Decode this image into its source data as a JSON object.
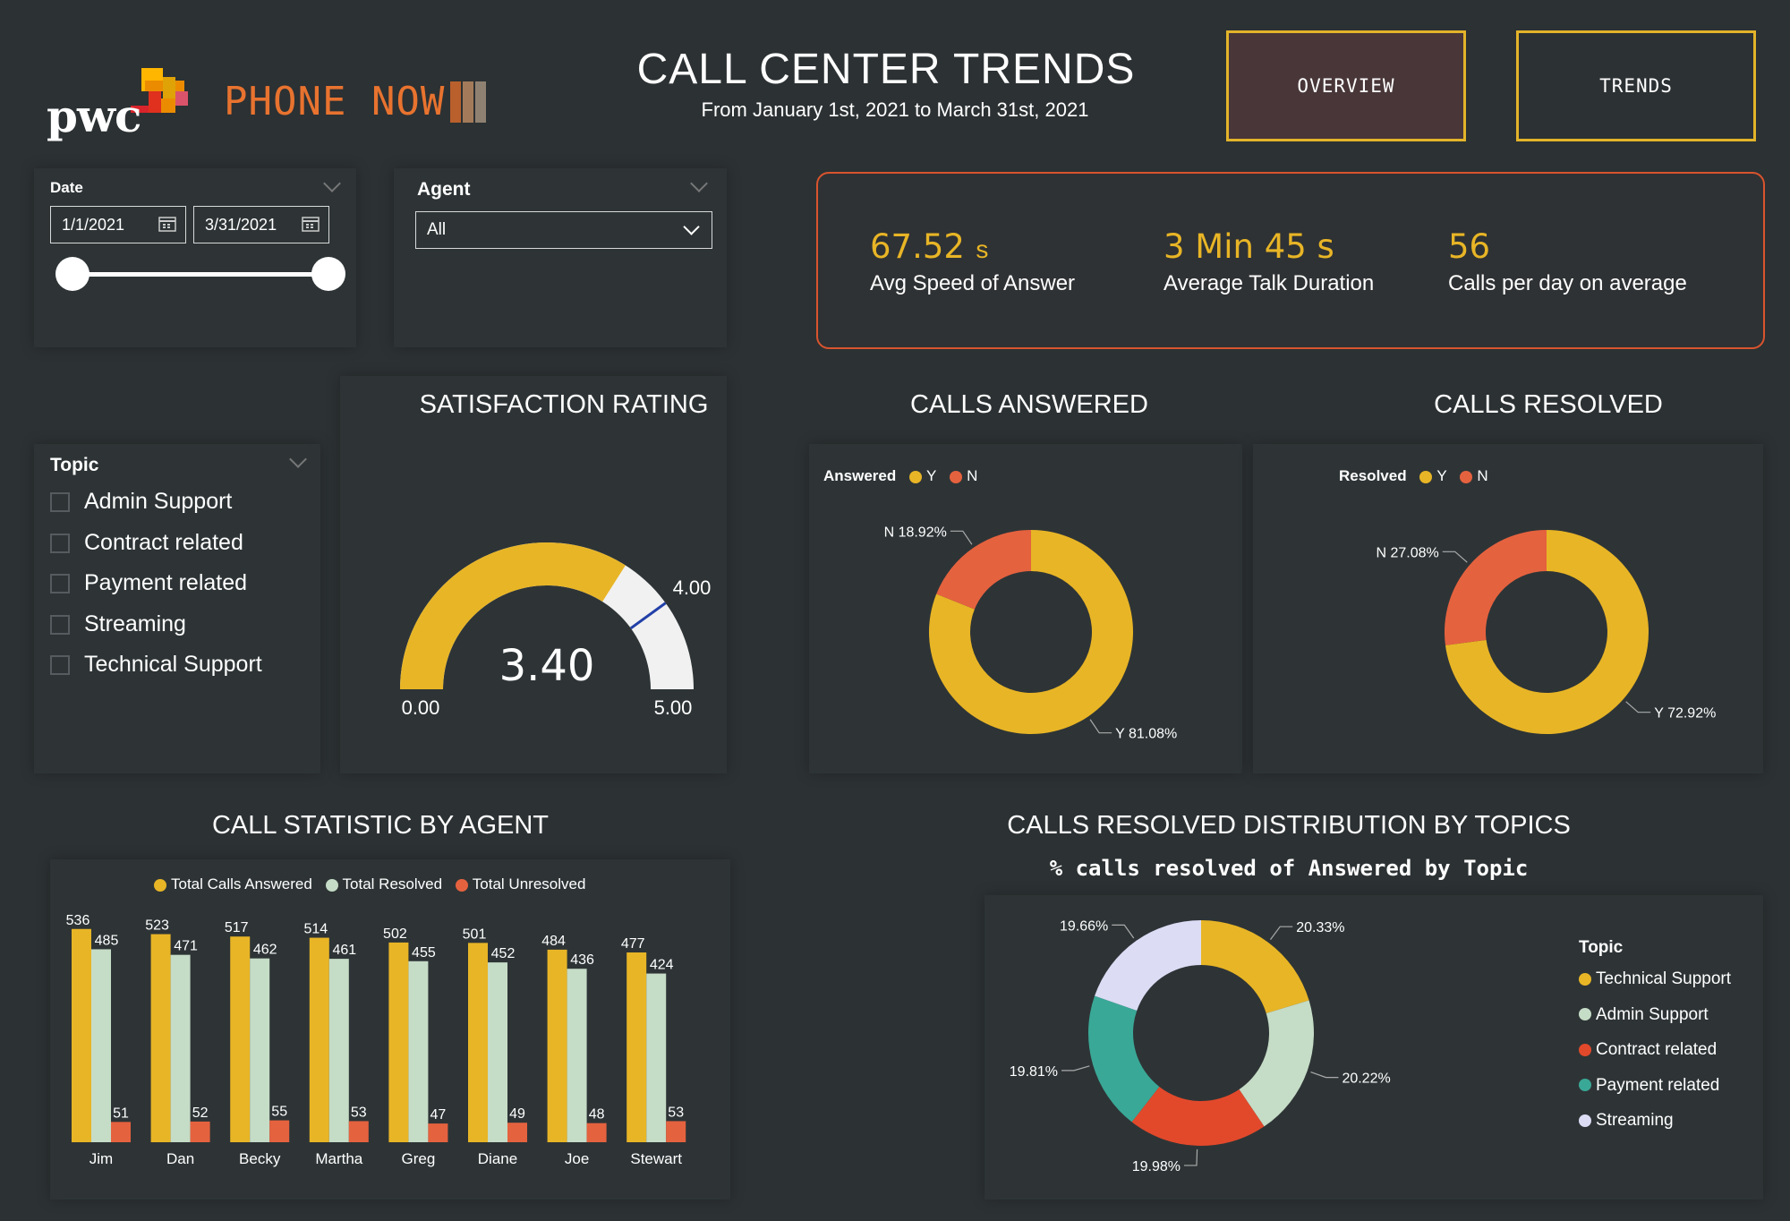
{
  "header": {
    "pwc_logo_text": "pwc",
    "brand": "PHONE NOW",
    "title": "CALL CENTER TRENDS",
    "subtitle": "From January 1st, 2021 to March 31st, 2021",
    "nav": {
      "overview": "OVERVIEW",
      "trends": "TRENDS"
    }
  },
  "filters": {
    "date_label": "Date",
    "date_start": "1/1/2021",
    "date_end": "3/31/2021",
    "agent_label": "Agent",
    "agent_value": "All",
    "topic_label": "Topic",
    "topics": [
      "Admin Support",
      "Contract related",
      "Payment related",
      "Streaming",
      "Technical Support"
    ]
  },
  "kpis": [
    {
      "value": "67.52",
      "unit": "s",
      "label": "Avg Speed of Answer"
    },
    {
      "value": "3 Min 45 s",
      "unit": "",
      "label": "Average Talk Duration"
    },
    {
      "value": "56",
      "unit": "",
      "label": "Calls per day on average"
    }
  ],
  "satisfaction": {
    "title": "SATISFACTION RATING",
    "value": 3.4,
    "value_label": "3.40",
    "min": 0,
    "min_label": "0.00",
    "max": 5,
    "max_label": "5.00",
    "target": 4,
    "target_label": "4.00"
  },
  "colors": {
    "yellow": "#e8b526",
    "orange": "#e5623f",
    "green": "#c5dcc6",
    "red": "#e2492b",
    "teal": "#3aa897",
    "lavender": "#dcdcf5",
    "track": "#f1f1f1"
  },
  "chart_data": [
    {
      "type": "pie",
      "title": "CALLS ANSWERED",
      "legend_title": "Answered",
      "categories": [
        "Y",
        "N"
      ],
      "values": [
        81.08,
        18.92
      ],
      "labels": [
        "Y 81.08%",
        "N 18.92%"
      ]
    },
    {
      "type": "pie",
      "title": "CALLS RESOLVED",
      "legend_title": "Resolved",
      "categories": [
        "Y",
        "N"
      ],
      "values": [
        72.92,
        27.08
      ],
      "labels": [
        "Y 72.92%",
        "N 27.08%"
      ]
    },
    {
      "type": "bar",
      "title": "CALL STATISTIC BY AGENT",
      "categories": [
        "Jim",
        "Dan",
        "Becky",
        "Martha",
        "Greg",
        "Diane",
        "Joe",
        "Stewart"
      ],
      "series": [
        {
          "name": "Total Calls Answered",
          "values": [
            536,
            523,
            517,
            514,
            502,
            501,
            484,
            477
          ]
        },
        {
          "name": "Total Resolved",
          "values": [
            485,
            471,
            462,
            461,
            455,
            452,
            436,
            424
          ]
        },
        {
          "name": "Total Unresolved",
          "values": [
            51,
            52,
            55,
            53,
            47,
            49,
            48,
            53
          ]
        }
      ],
      "ylim": [
        0,
        540
      ]
    },
    {
      "type": "pie",
      "title": "CALLS RESOLVED DISTRIBUTION BY TOPICS",
      "subtitle": "% calls resolved of Answered by Topic",
      "legend_title": "Topic",
      "categories": [
        "Technical Support",
        "Admin Support",
        "Contract related",
        "Payment related",
        "Streaming"
      ],
      "values": [
        20.33,
        20.22,
        19.98,
        19.81,
        19.66
      ],
      "labels": [
        "20.33%",
        "20.22%",
        "19.98%",
        "19.81%",
        "19.66%"
      ]
    }
  ]
}
